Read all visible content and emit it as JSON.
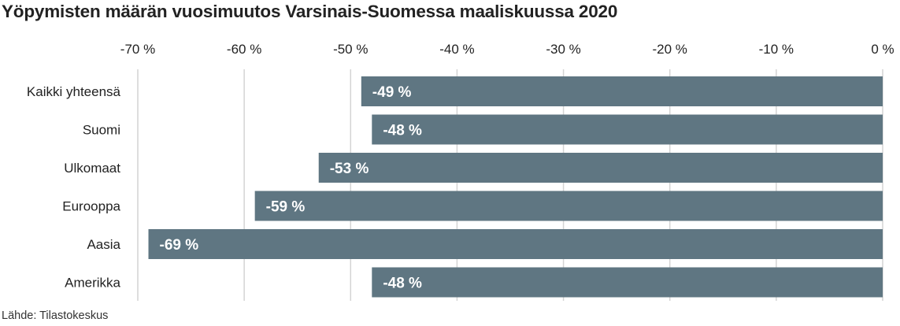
{
  "chart_data": {
    "type": "bar",
    "orientation": "horizontal",
    "title": "Yöpymisten määrän vuosimuutos Varsinais-Suomessa maaliskuussa 2020",
    "categories": [
      "Kaikki yhteensä",
      "Suomi",
      "Ulkomaat",
      "Eurooppa",
      "Aasia",
      "Amerikka"
    ],
    "values": [
      -49,
      -48,
      -53,
      -59,
      -69,
      -48
    ],
    "data_labels": [
      "-49 %",
      "-48 %",
      "-53 %",
      "-59 %",
      "-69 %",
      "-48 %"
    ],
    "xlim": [
      -70,
      0
    ],
    "x_ticks": [
      -70,
      -60,
      -50,
      -40,
      -30,
      -20,
      -10,
      0
    ],
    "x_tick_labels": [
      "-70 %",
      "-60 %",
      "-50 %",
      "-40 %",
      "-30 %",
      "-20 %",
      "-10 %",
      "0 %"
    ],
    "x_axis_position": "top",
    "grid": true,
    "bar_color": "#5f7682",
    "grid_color": "#d4d4d4",
    "source": "Lähde: Tilastokeskus"
  }
}
